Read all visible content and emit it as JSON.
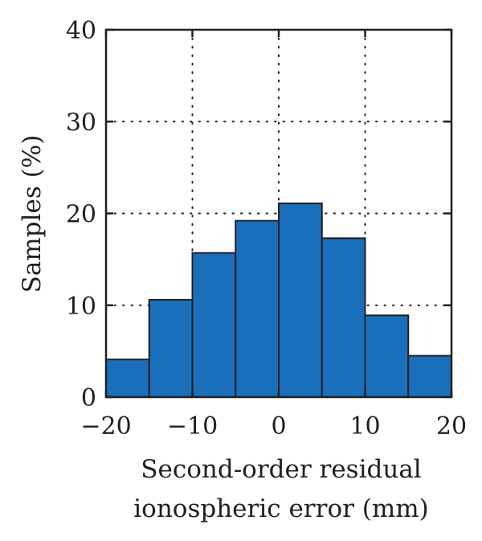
{
  "chart_data": {
    "type": "bar",
    "variant": "histogram",
    "bin_edges": [
      -20,
      -15,
      -10,
      -5,
      0,
      5,
      10,
      15,
      20
    ],
    "values": [
      4.1,
      10.6,
      15.7,
      19.2,
      21.1,
      17.3,
      8.9,
      4.5
    ],
    "xlabel_lines": [
      "Second-order residual",
      "ionospheric error (mm)"
    ],
    "ylabel": "Samples (%)",
    "xlim": [
      -20,
      20
    ],
    "ylim": [
      0,
      40
    ],
    "xticks": [
      -20,
      -10,
      0,
      10,
      20
    ],
    "xtick_labels": [
      "−20",
      "−10",
      "0",
      "10",
      "20"
    ],
    "yticks": [
      0,
      10,
      20,
      30,
      40
    ],
    "ytick_labels": [
      "0",
      "10",
      "20",
      "30",
      "40"
    ],
    "grid": true,
    "grid_style": "dotted",
    "bar_color": "#1a6fba",
    "edge_color": "#231f20"
  }
}
